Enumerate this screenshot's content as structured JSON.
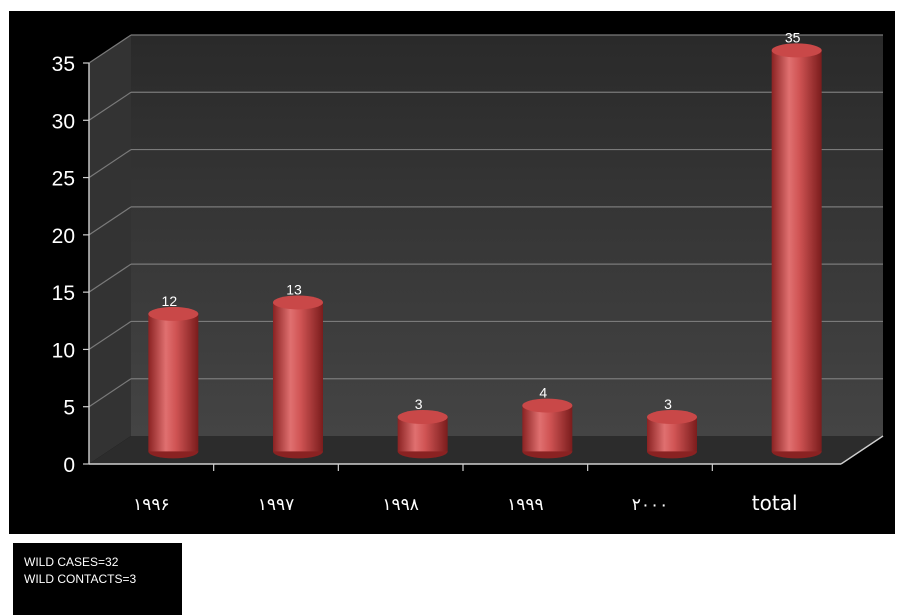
{
  "chart_data": {
    "type": "bar",
    "categories": [
      "١٩٩۶",
      "١٩٩٧",
      "١٩٩٨",
      "١٩٩٩",
      "٢٠٠٠",
      "total"
    ],
    "values": [
      12,
      13,
      3,
      4,
      3,
      35
    ],
    "data_labels": [
      "12",
      "13",
      "3",
      "4",
      "3",
      "35"
    ],
    "y_ticks": [
      "0",
      "5",
      "10",
      "15",
      "20",
      "25",
      "30",
      "35"
    ],
    "ylim": [
      0,
      35
    ],
    "grid": true,
    "style": "3d-cylinder",
    "colors": {
      "bar": "#c94848",
      "bar_light": "#e87a7a",
      "bar_dark": "#8a2222",
      "background": "#000000",
      "wall": "#3a3a3a",
      "floor": "#2c2c2c"
    }
  },
  "notes": [
    "WILD CASES=32",
    "WILD CONTACTS=3"
  ]
}
